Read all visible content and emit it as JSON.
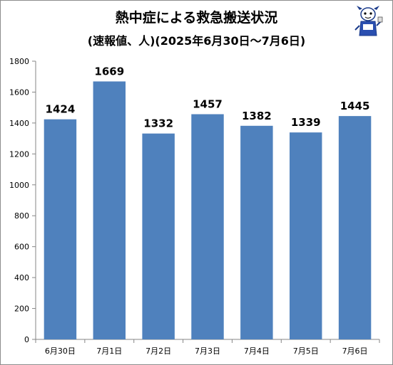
{
  "chart_data": {
    "type": "bar",
    "title": "熱中症による救急搬送状況",
    "subtitle": "(速報値、人)(2025年6月30日〜7月6日)",
    "categories": [
      "6月30日",
      "7月1日",
      "7月2日",
      "7月3日",
      "7月4日",
      "7月5日",
      "7月6日"
    ],
    "values": [
      1424,
      1669,
      1332,
      1457,
      1382,
      1339,
      1445
    ],
    "data_labels": [
      "1424",
      "1669",
      "1332",
      "1457",
      "1382",
      "1339",
      "1445"
    ],
    "ylim": [
      0,
      1800
    ],
    "yticks": [
      0,
      200,
      400,
      600,
      800,
      1000,
      1200,
      1400,
      1600,
      1800
    ],
    "ytick_labels": [
      "0",
      "200",
      "400",
      "600",
      "800",
      "1000",
      "1200",
      "1400",
      "1600",
      "1800"
    ],
    "grid": false,
    "bar_color": "#4f81bd"
  }
}
